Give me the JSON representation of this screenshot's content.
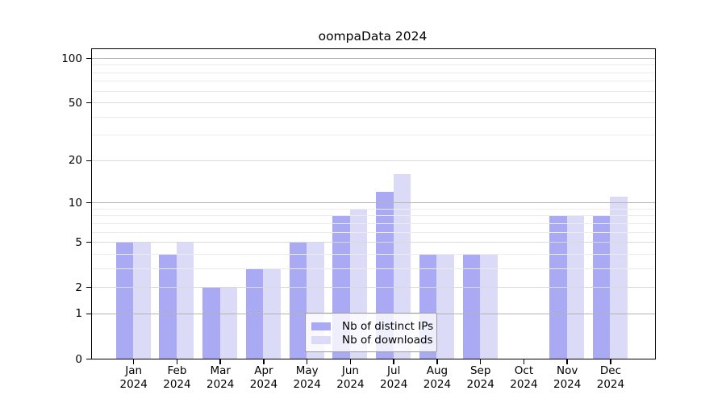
{
  "chart_data": {
    "type": "bar",
    "title": "oompaData 2024",
    "categories": [
      "Jan",
      "Feb",
      "Mar",
      "Apr",
      "May",
      "Jun",
      "Jul",
      "Aug",
      "Sep",
      "Oct",
      "Nov",
      "Dec"
    ],
    "xtick_year": "2024",
    "series": [
      {
        "name": "Nb of distinct IPs",
        "color": "#a9a9f4",
        "values": [
          5,
          4,
          2,
          3,
          5,
          8,
          12,
          4,
          4,
          0,
          8,
          8
        ]
      },
      {
        "name": "Nb of downloads",
        "color": "#dbdbf8",
        "values": [
          5,
          5,
          2,
          3,
          5,
          9,
          16,
          4,
          4,
          0,
          8,
          11
        ]
      }
    ],
    "yscale": "log1p",
    "ylim": [
      0,
      100
    ],
    "ytick_labels": [
      0,
      1,
      2,
      5,
      10,
      20,
      50,
      100
    ],
    "grid_major": [
      1,
      10,
      100
    ],
    "grid_mid": [
      2,
      5,
      20,
      50
    ],
    "grid_minor": [
      3,
      4,
      6,
      7,
      8,
      9,
      30,
      40,
      60,
      70,
      80,
      90
    ],
    "grid": "horizontal, drawn over bars",
    "legend_position": "bottom-center-inside",
    "frame": "full box"
  }
}
